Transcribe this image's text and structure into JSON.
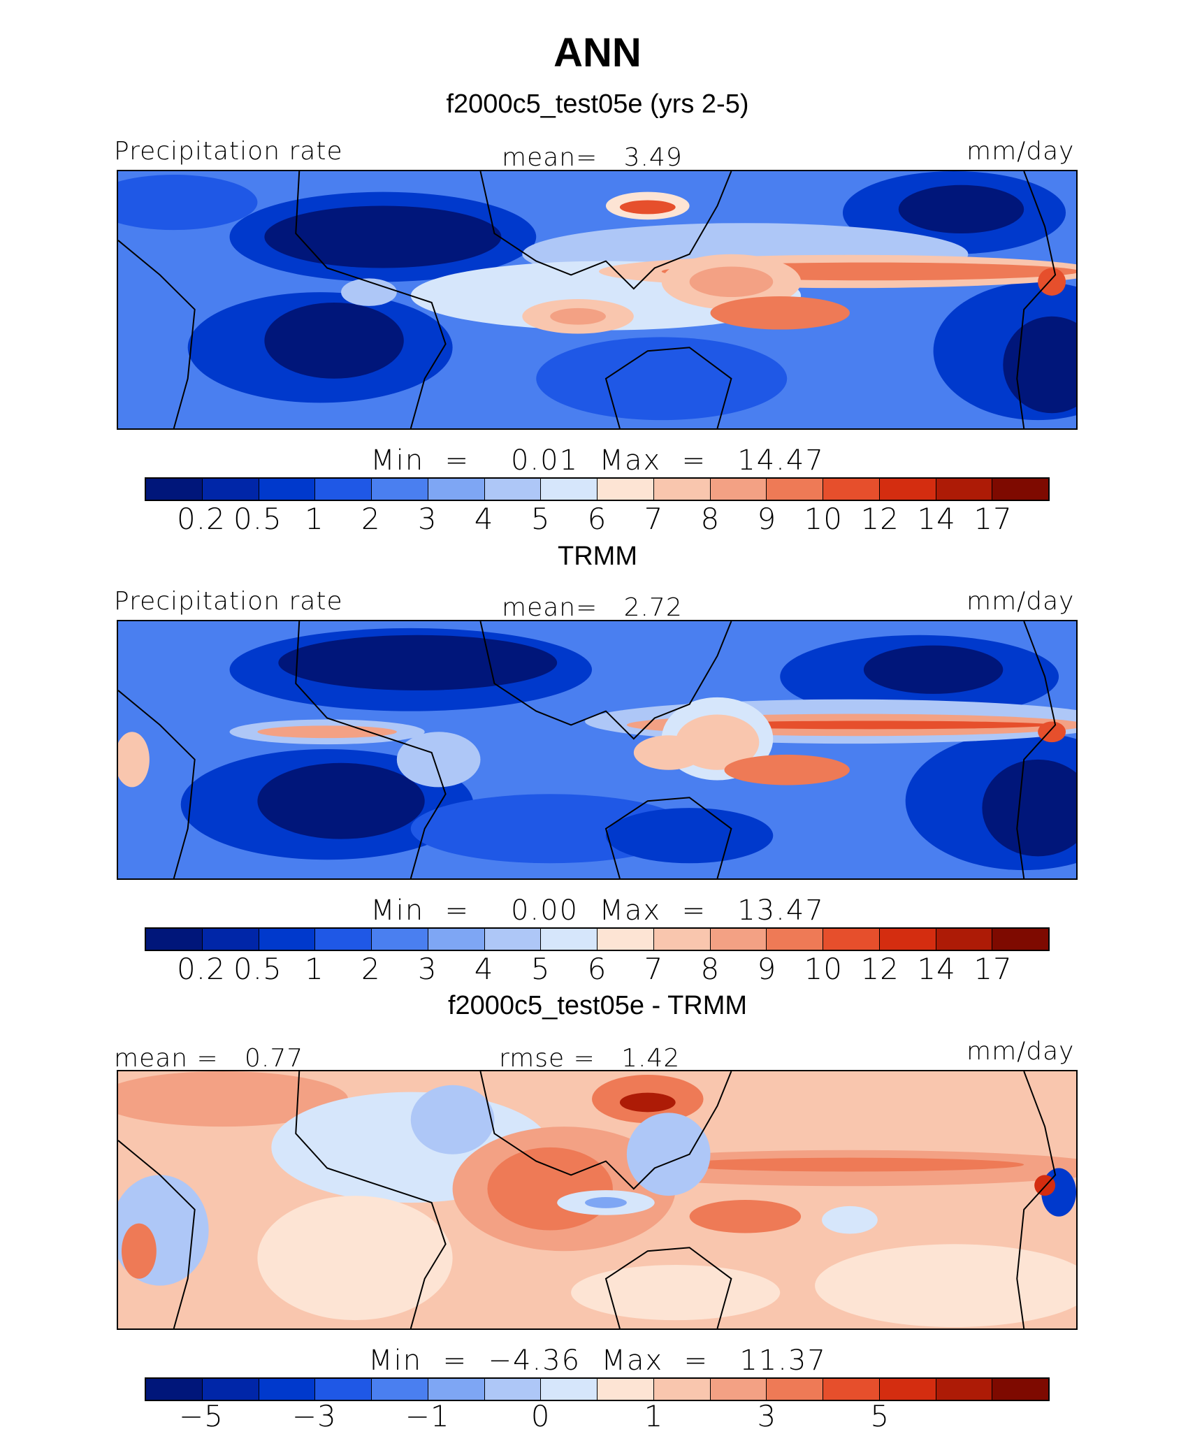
{
  "figure": {
    "title": "ANN",
    "unit": "mm/day"
  },
  "panels": [
    {
      "title": "f2000c5_test05e (yrs 2-5)",
      "left_label": "Precipitation rate",
      "center_label": "mean=   3.49",
      "right_label": "mm/day",
      "minmax": "Min  =    0.01  Max  =   14.47",
      "kind": "abs",
      "colorbar": {
        "colors": [
          "#00167a",
          "#0026a8",
          "#0039cc",
          "#1f58e6",
          "#4a7ff0",
          "#7ea6f4",
          "#aec7f7",
          "#d6e6fb",
          "#fde4d4",
          "#f9c6ae",
          "#f3a184",
          "#ee7a56",
          "#e64f2c",
          "#d42d10",
          "#ad1b06",
          "#7e0a00"
        ],
        "ticks": [
          "0.2",
          "0.5",
          "1",
          "2",
          "3",
          "4",
          "5",
          "6",
          "7",
          "8",
          "9",
          "10",
          "12",
          "14",
          "17"
        ]
      }
    },
    {
      "title": "TRMM",
      "left_label": "Precipitation rate",
      "center_label": "mean=   2.72",
      "right_label": "mm/day",
      "minmax": "Min  =    0.00  Max  =   13.47",
      "kind": "abs",
      "colorbar": {
        "colors": [
          "#00167a",
          "#0026a8",
          "#0039cc",
          "#1f58e6",
          "#4a7ff0",
          "#7ea6f4",
          "#aec7f7",
          "#d6e6fb",
          "#fde4d4",
          "#f9c6ae",
          "#f3a184",
          "#ee7a56",
          "#e64f2c",
          "#d42d10",
          "#ad1b06",
          "#7e0a00"
        ],
        "ticks": [
          "0.2",
          "0.5",
          "1",
          "2",
          "3",
          "4",
          "5",
          "6",
          "7",
          "8",
          "9",
          "10",
          "12",
          "14",
          "17"
        ]
      }
    },
    {
      "title": "f2000c5_test05e - TRMM",
      "left_label": "mean =   0.77",
      "center_label": "rmse =   1.42",
      "right_label": "mm/day",
      "minmax": "Min  =  −4.36  Max  =   11.37",
      "kind": "diff",
      "colorbar": {
        "colors": [
          "#00167a",
          "#0026a8",
          "#0039cc",
          "#1f58e6",
          "#4a7ff0",
          "#7ea6f4",
          "#aec7f7",
          "#d6e6fb",
          "#fde4d4",
          "#f9c6ae",
          "#f3a184",
          "#ee7a56",
          "#e64f2c",
          "#d42d10",
          "#ad1b06",
          "#7e0a00"
        ],
        "ticks": [
          "−5",
          "",
          "−3",
          "",
          "−1",
          "",
          "0",
          "",
          "1",
          "",
          "3",
          "",
          "5",
          "",
          ""
        ]
      }
    }
  ]
}
